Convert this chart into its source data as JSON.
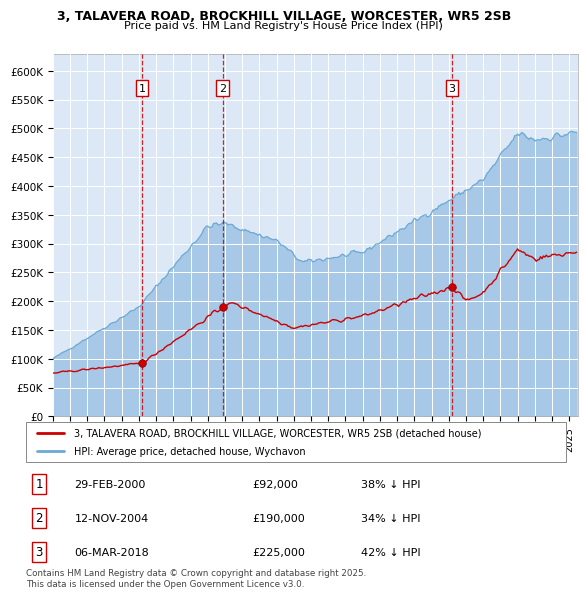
{
  "title1": "3, TALAVERA ROAD, BROCKHILL VILLAGE, WORCESTER, WR5 2SB",
  "title2": "Price paid vs. HM Land Registry's House Price Index (HPI)",
  "ylabel_ticks": [
    "£0",
    "£50K",
    "£100K",
    "£150K",
    "£200K",
    "£250K",
    "£300K",
    "£350K",
    "£400K",
    "£450K",
    "£500K",
    "£550K",
    "£600K"
  ],
  "ytick_values": [
    0,
    50000,
    100000,
    150000,
    200000,
    250000,
    300000,
    350000,
    400000,
    450000,
    500000,
    550000,
    600000
  ],
  "xmin": 1995.0,
  "xmax": 2025.5,
  "hpi_color": "#a8c8e8",
  "hpi_line_color": "#6aaad4",
  "price_color": "#cc0000",
  "plot_bg": "#dce8f5",
  "legend_label_price": "3, TALAVERA ROAD, BROCKHILL VILLAGE, WORCESTER, WR5 2SB (detached house)",
  "legend_label_hpi": "HPI: Average price, detached house, Wychavon",
  "transactions": [
    {
      "num": 1,
      "date": "29-FEB-2000",
      "price": 92000,
      "pct": "38%",
      "year": 2000.17
    },
    {
      "num": 2,
      "date": "12-NOV-2004",
      "price": 190000,
      "pct": "34%",
      "year": 2004.87
    },
    {
      "num": 3,
      "date": "06-MAR-2018",
      "price": 225000,
      "pct": "42%",
      "year": 2018.19
    }
  ],
  "footnote": "Contains HM Land Registry data © Crown copyright and database right 2025.\nThis data is licensed under the Open Government Licence v3.0."
}
